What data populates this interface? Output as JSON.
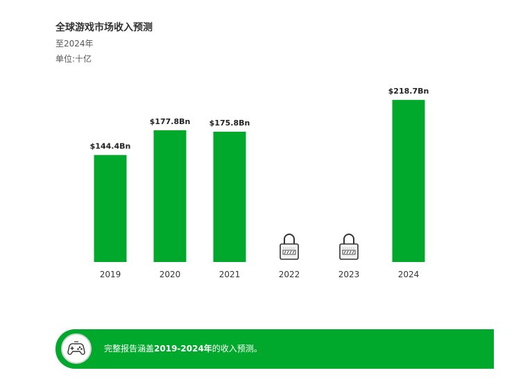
{
  "header": {
    "title": "全球游戏市场收入预测",
    "subtitle": "至2024年",
    "unit": "单位:十亿"
  },
  "banner": {
    "text_before": "完整报告涵盖",
    "text_bold": "2019-2024年",
    "text_after": "的收入预测。",
    "icon": "gamepad-icon"
  },
  "colors": {
    "bar": "#00a92b",
    "label": "#222222",
    "lock_fill": "#f4f4f4",
    "lock_stroke": "#333333"
  },
  "chart_data": {
    "type": "bar",
    "categories": [
      "2019",
      "2020",
      "2021",
      "2022",
      "2023",
      "2024"
    ],
    "values": [
      144.4,
      177.8,
      175.8,
      null,
      null,
      218.7
    ],
    "data_labels": [
      "$144.4Bn",
      "$177.8Bn",
      "$175.8Bn",
      "",
      "",
      "$218.7Bn"
    ],
    "locked": [
      false,
      false,
      false,
      true,
      true,
      false
    ],
    "locked_icon": "padlock-icon",
    "ylim": [
      0,
      260
    ],
    "grid": false,
    "legend": "none"
  }
}
